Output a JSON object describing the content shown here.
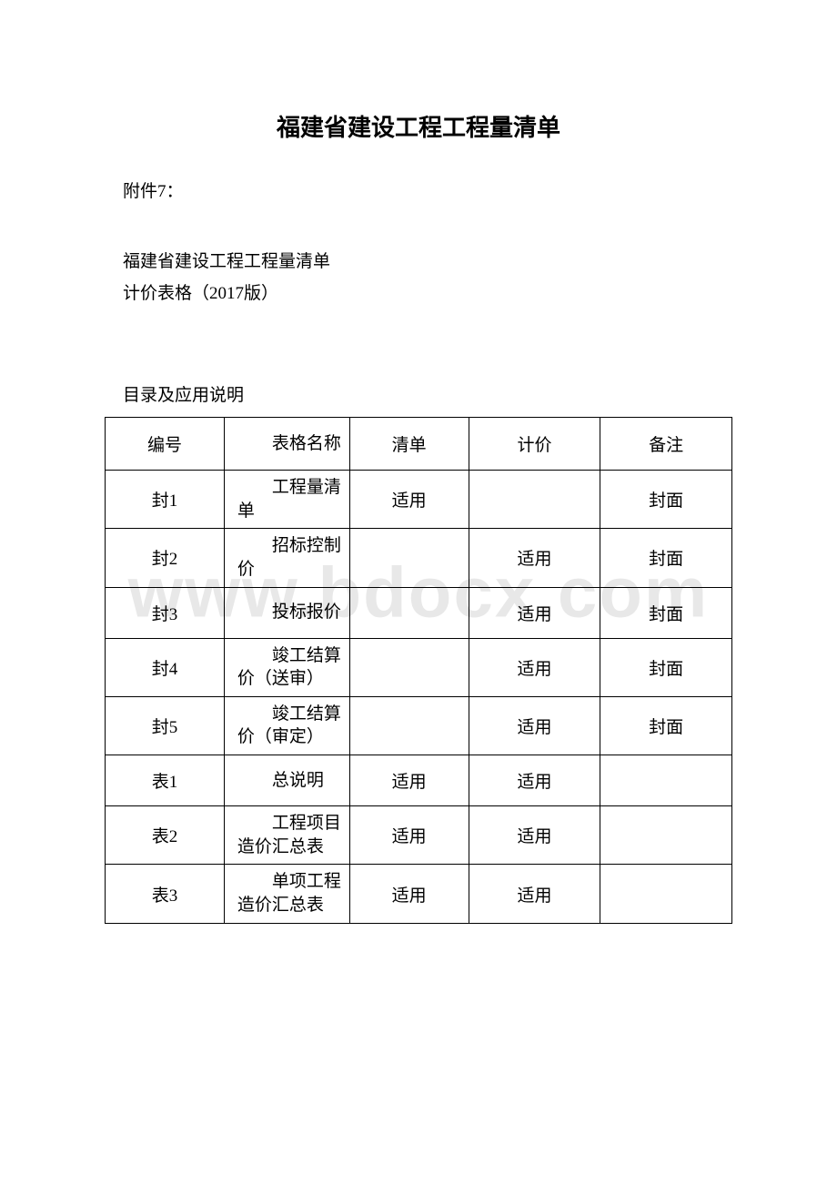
{
  "watermark": "www.bdocx.com",
  "title": "福建省建设工程工程量清单",
  "attachment_label": "附件7：",
  "subtitle_line1": "福建省建设工程工程量清单",
  "subtitle_line2": "计价表格（2017版）",
  "section_title": "目录及应用说明",
  "table": {
    "columns": [
      "编号",
      "表格名称",
      "清单",
      "计价",
      "备注"
    ],
    "rows": [
      {
        "id": "封1",
        "name": "工程量清单",
        "qingdan": "适用",
        "jijia": "",
        "remark": "封面"
      },
      {
        "id": "封2",
        "name": "招标控制价",
        "qingdan": "",
        "jijia": "适用",
        "remark": "封面"
      },
      {
        "id": "封3",
        "name": "投标报价",
        "qingdan": "",
        "jijia": "适用",
        "remark": "封面"
      },
      {
        "id": "封4",
        "name": "竣工结算价（送审）",
        "qingdan": "",
        "jijia": "适用",
        "remark": "封面"
      },
      {
        "id": "封5",
        "name": "竣工结算价（审定）",
        "qingdan": "",
        "jijia": "适用",
        "remark": "封面"
      },
      {
        "id": "表1",
        "name": "总说明",
        "qingdan": "适用",
        "jijia": "适用",
        "remark": ""
      },
      {
        "id": "表2",
        "name": "工程项目造价汇总表",
        "qingdan": "适用",
        "jijia": "适用",
        "remark": ""
      },
      {
        "id": "表3",
        "name": "单项工程造价汇总表",
        "qingdan": "适用",
        "jijia": "适用",
        "remark": ""
      }
    ],
    "border_color": "#000000",
    "text_color": "#000000",
    "font_size": 19
  },
  "colors": {
    "background": "#ffffff",
    "text": "#000000",
    "watermark": "#e8e8e8"
  }
}
